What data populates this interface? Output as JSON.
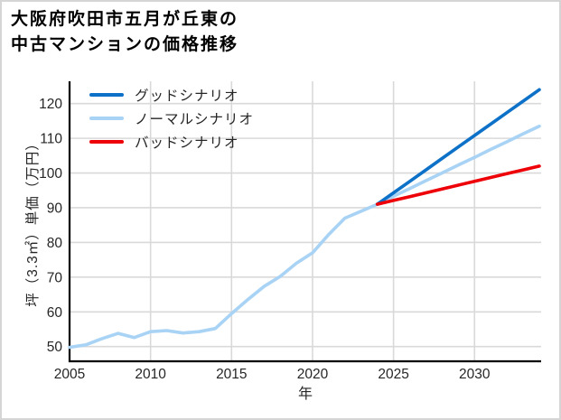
{
  "title": {
    "line1": "大阪府吹田市五月が丘東の",
    "line2": "中古マンションの価格推移"
  },
  "chart_data": {
    "type": "line",
    "title": "大阪府吹田市五月が丘東の中古マンションの価格推移",
    "xlabel": "年",
    "ylabel": "坪（3.3㎡）単価（万円）",
    "xlim": [
      2005,
      2034.2
    ],
    "ylim": [
      45.8,
      126.5
    ],
    "xticks": [
      2005,
      2010,
      2015,
      2020,
      2025,
      2030
    ],
    "yticks": [
      50,
      60,
      70,
      80,
      90,
      100,
      110,
      120
    ],
    "grid": true,
    "legend_position": "upper-left-inside",
    "colors": {
      "gridline": "#d9d9d9",
      "spine": "#000000",
      "tick_label": "#262626"
    },
    "series": [
      {
        "name": "historical",
        "label": "",
        "color": "#a9d3f5",
        "x": [
          2005,
          2006,
          2007,
          2008,
          2009,
          2010,
          2011,
          2012,
          2013,
          2014,
          2015,
          2016,
          2017,
          2018,
          2019,
          2020,
          2021,
          2022,
          2023,
          2024
        ],
        "values": [
          49.8,
          50.5,
          52.3,
          53.8,
          52.6,
          54.3,
          54.6,
          53.9,
          54.3,
          55.2,
          59.5,
          63.5,
          67.3,
          70.2,
          74.0,
          77.0,
          82.3,
          87.0,
          89.0,
          91.0
        ]
      },
      {
        "name": "good",
        "label": "グッドシナリオ",
        "color": "#0e71c8",
        "x": [
          2024,
          2025,
          2026,
          2027,
          2028,
          2029,
          2030,
          2031,
          2032,
          2033,
          2034
        ],
        "values": [
          91.0,
          94.3,
          97.6,
          100.9,
          104.2,
          107.5,
          110.8,
          114.1,
          117.4,
          120.7,
          124.0
        ]
      },
      {
        "name": "normal",
        "label": "ノーマルシナリオ",
        "color": "#a9d3f5",
        "x": [
          2024,
          2025,
          2026,
          2027,
          2028,
          2029,
          2030,
          2031,
          2032,
          2033,
          2034
        ],
        "values": [
          91.0,
          93.3,
          95.5,
          97.8,
          100.0,
          102.3,
          104.5,
          106.8,
          109.0,
          111.3,
          113.5
        ]
      },
      {
        "name": "bad",
        "label": "バッドシナリオ",
        "color": "#ee0008",
        "x": [
          2024,
          2025,
          2026,
          2027,
          2028,
          2029,
          2030,
          2031,
          2032,
          2033,
          2034
        ],
        "values": [
          91.0,
          92.1,
          93.2,
          94.3,
          95.4,
          96.5,
          97.6,
          98.7,
          99.8,
          100.9,
          102.0
        ]
      }
    ]
  }
}
